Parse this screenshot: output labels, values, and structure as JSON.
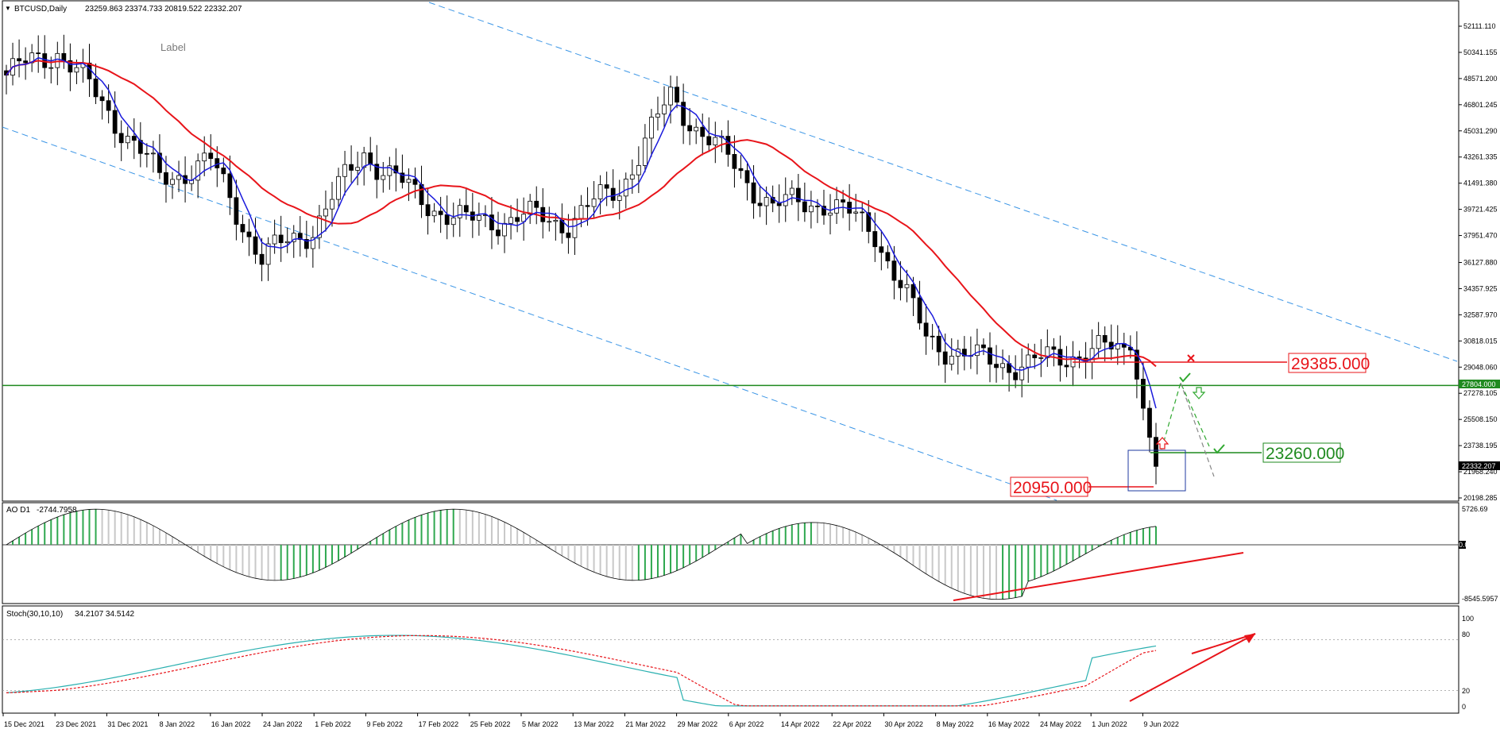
{
  "header": {
    "title": "BTCUSD,Daily",
    "ohlc": "23259.863 23374.733 20819.522 22332.207",
    "label": "Label"
  },
  "price_panel": {
    "ticks": [
      "52111.110",
      "50341.155",
      "48571.200",
      "46801.245",
      "45031.290",
      "43261.335",
      "41491.380",
      "39721.425",
      "37951.470",
      "36127.880",
      "34357.925",
      "32587.970",
      "30818.015",
      "29048.060",
      "27278.105",
      "25508.150",
      "23738.195",
      "21968.240",
      "20198.285"
    ],
    "current_price": "22332.207",
    "support_line_label": "27804.000",
    "level_labels": {
      "resistance": "29385.000",
      "target": "23260.000",
      "low": "20950.000"
    },
    "level_values": {
      "resistance": 29385.0,
      "support": 27804.0,
      "target": 23260.0,
      "low": 20950.0
    },
    "colors": {
      "up_candle": "#ffffff",
      "down_candle": "#000000",
      "ma_fast": "#1a1adc",
      "ma_slow": "#e8141a",
      "channel": "#3c96e6",
      "support": "#1f8a1f"
    }
  },
  "ao_panel": {
    "title": "AO D1",
    "value": "-2744.7958",
    "ticks": {
      "top": "5726.69",
      "zero": "0.00",
      "bottom": "-8545.5957"
    }
  },
  "stoch_panel": {
    "title": "Stoch(30,10,10)",
    "value": "34.2107 34.5142",
    "ticks": [
      "100",
      "80",
      "20",
      "0"
    ]
  },
  "x_axis": {
    "labels": [
      "15 Dec 2021",
      "23 Dec 2021",
      "31 Dec 2021",
      "8 Jan 2022",
      "16 Jan 2022",
      "24 Jan 2022",
      "1 Feb 2022",
      "9 Feb 2022",
      "17 Feb 2022",
      "25 Feb 2022",
      "5 Mar 2022",
      "13 Mar 2022",
      "21 Mar 2022",
      "29 Mar 2022",
      "6 Apr 2022",
      "14 Apr 2022",
      "22 Apr 2022",
      "30 Apr 2022",
      "8 May 2022",
      "16 May 2022",
      "24 May 2022",
      "1 Jun 2022",
      "9 Jun 2022"
    ]
  },
  "chart_data": {
    "type": "candlestick",
    "symbol": "BTCUSD",
    "timeframe": "Daily",
    "ylim": [
      20198.285,
      52111.11
    ],
    "key_points": [
      {
        "date": "15 Dec 2021",
        "close": 48800
      },
      {
        "date": "23 Dec 2021",
        "close": 50500
      },
      {
        "date": "31 Dec 2021",
        "close": 46400
      },
      {
        "date": "8 Jan 2022",
        "close": 41800
      },
      {
        "date": "16 Jan 2022",
        "close": 42900
      },
      {
        "date": "24 Jan 2022",
        "close": 36400
      },
      {
        "date": "1 Feb 2022",
        "close": 38500
      },
      {
        "date": "9 Feb 2022",
        "close": 43600
      },
      {
        "date": "17 Feb 2022",
        "close": 40600
      },
      {
        "date": "25 Feb 2022",
        "close": 38800
      },
      {
        "date": "5 Mar 2022",
        "close": 39200
      },
      {
        "date": "13 Mar 2022",
        "close": 38900
      },
      {
        "date": "21 Mar 2022",
        "close": 41200
      },
      {
        "date": "29 Mar 2022",
        "close": 47300
      },
      {
        "date": "6 Apr 2022",
        "close": 43500
      },
      {
        "date": "14 Apr 2022",
        "close": 39900
      },
      {
        "date": "22 Apr 2022",
        "close": 40300
      },
      {
        "date": "30 Apr 2022",
        "close": 38200
      },
      {
        "date": "8 May 2022",
        "close": 31000
      },
      {
        "date": "16 May 2022",
        "close": 29500
      },
      {
        "date": "24 May 2022",
        "close": 29200
      },
      {
        "date": "1 Jun 2022",
        "close": 30100
      },
      {
        "date": "9 Jun 2022",
        "close": 30200
      },
      {
        "date": "13 Jun 2022",
        "close": 22332.207
      }
    ]
  }
}
